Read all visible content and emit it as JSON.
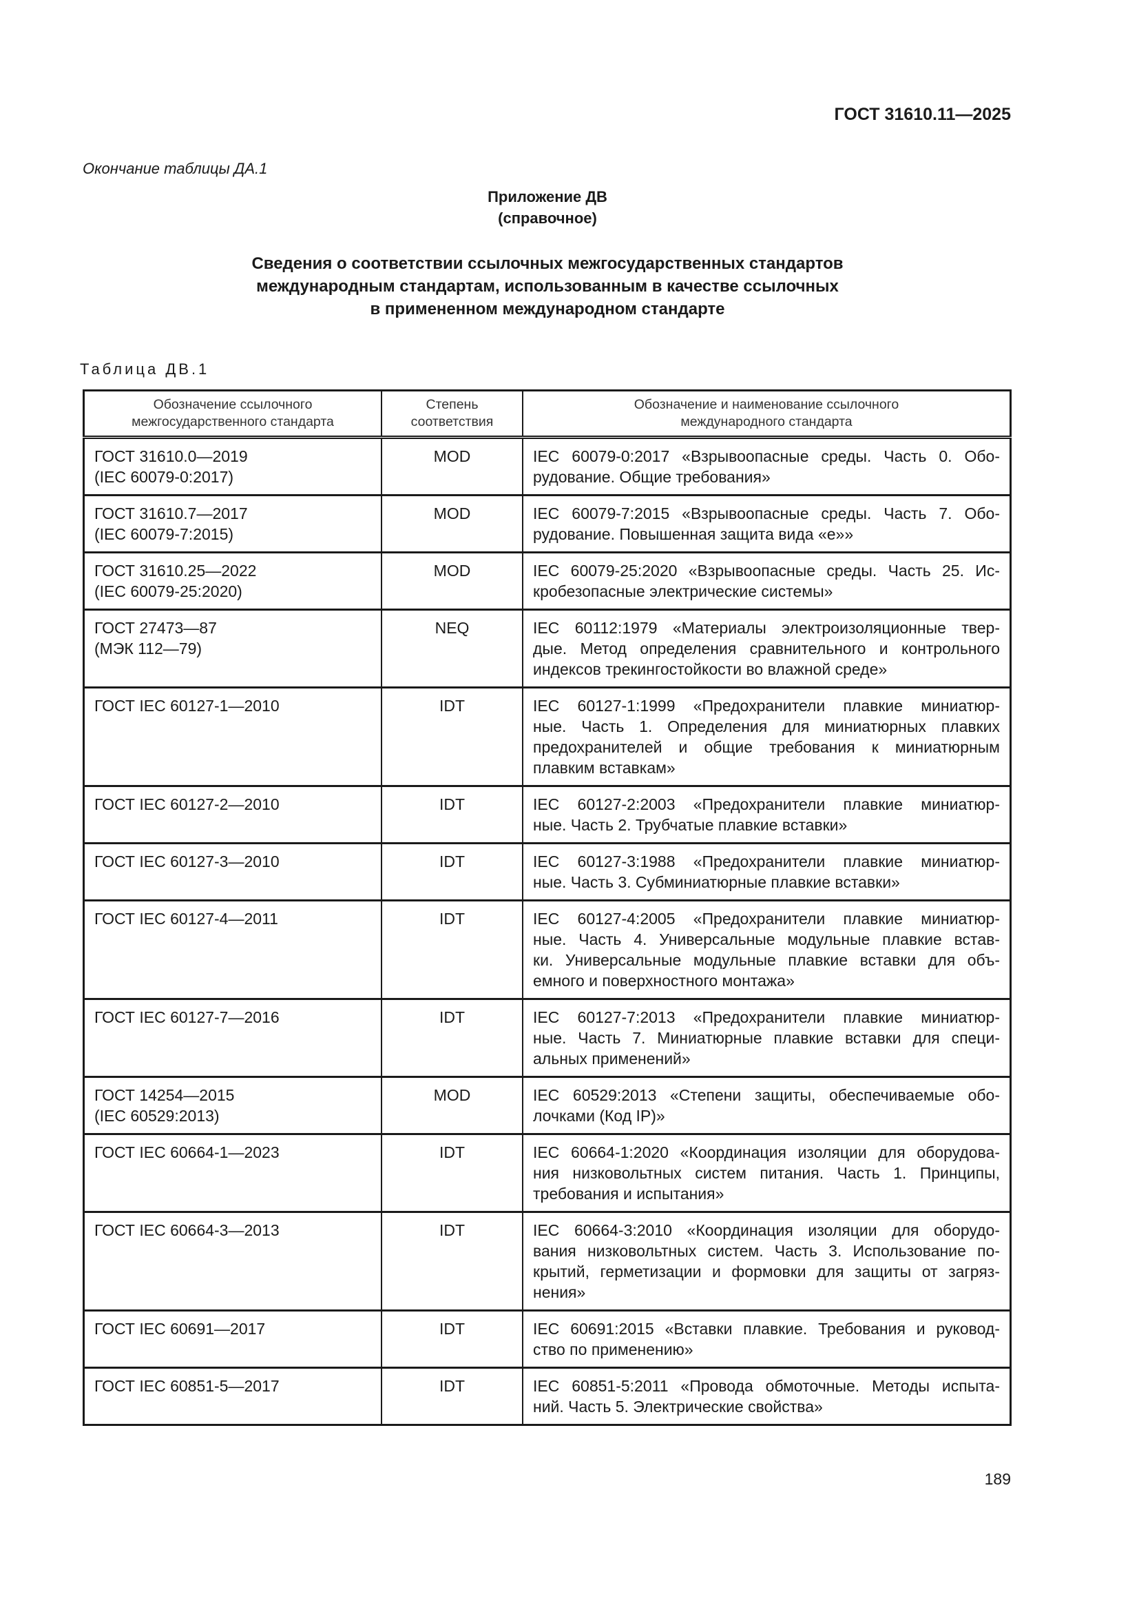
{
  "header": {
    "doc_code": "ГОСТ 31610.11—2025",
    "continuation": "Окончание таблицы ДА.1"
  },
  "annex": {
    "title": "Приложение ДВ",
    "kind": "(справочное)"
  },
  "title_lines": [
    "Сведения о соответствии ссылочных межгосударственных стандартов",
    "международным стандартам, использованным в качестве ссылочных",
    "в примененном международном стандарте"
  ],
  "table": {
    "label": "Таблица ДВ.1",
    "headers": [
      [
        "Обозначение ссылочного",
        "межгосударственного стандарта"
      ],
      [
        "Степень",
        "соответствия"
      ],
      [
        "Обозначение и наименование ссылочного",
        "международного стандарта"
      ]
    ],
    "rows": [
      {
        "std": [
          "ГОСТ 31610.0—2019",
          "(IEC 60079-0:2017)"
        ],
        "degree": "MOD",
        "intl": [
          "IEC 60079-0:2017 «Взрывоопасные среды. Часть 0. Обо-",
          "рудование. Общие требования»"
        ]
      },
      {
        "std": [
          "ГОСТ 31610.7—2017",
          "(IEC 60079-7:2015)"
        ],
        "degree": "MOD",
        "intl": [
          "IEC 60079-7:2015 «Взрывоопасные среды. Часть 7. Обо-",
          "рудование. Повышенная защита вида «е»»"
        ]
      },
      {
        "std": [
          "ГОСТ 31610.25—2022",
          "(IEC 60079-25:2020)"
        ],
        "degree": "MOD",
        "intl": [
          "IEC 60079-25:2020 «Взрывоопасные среды. Часть 25. Ис-",
          "кробезопасные электрические системы»"
        ]
      },
      {
        "std": [
          "ГОСТ 27473—87",
          "(МЭК 112—79)"
        ],
        "degree": "NEQ",
        "intl": [
          "IEC 60112:1979 «Материалы электроизоляционные твер-",
          "дые. Метод определения сравнительного и контрольного",
          "индексов трекингостойкости во влажной среде»"
        ]
      },
      {
        "std": [
          "ГОСТ IEC 60127-1—2010"
        ],
        "degree": "IDT",
        "intl": [
          "IEC 60127-1:1999 «Предохранители плавкие миниатюр-",
          "ные. Часть 1. Определения для миниатюрных плавких",
          "предохранителей и общие требования к миниатюрным",
          "плавким вставкам»"
        ]
      },
      {
        "std": [
          "ГОСТ IEC 60127-2—2010"
        ],
        "degree": "IDT",
        "intl": [
          "IEC 60127-2:2003 «Предохранители плавкие миниатюр-",
          "ные. Часть 2. Трубчатые плавкие вставки»"
        ]
      },
      {
        "std": [
          "ГОСТ IEC 60127-3—2010"
        ],
        "degree": "IDT",
        "intl": [
          "IEC 60127-3:1988 «Предохранители плавкие миниатюр-",
          "ные. Часть 3. Субминиатюрные плавкие вставки»"
        ]
      },
      {
        "std": [
          "ГОСТ IEC 60127-4—2011"
        ],
        "degree": "IDT",
        "intl": [
          "IEC 60127-4:2005 «Предохранители плавкие миниатюр-",
          "ные. Часть 4. Универсальные модульные плавкие встав-",
          "ки. Универсальные модульные плавкие вставки для объ-",
          "емного и поверхностного монтажа»"
        ]
      },
      {
        "std": [
          "ГОСТ IEC 60127-7—2016"
        ],
        "degree": "IDT",
        "intl": [
          "IEC 60127-7:2013 «Предохранители плавкие миниатюр-",
          "ные. Часть 7. Миниатюрные плавкие вставки для специ-",
          "альных применений»"
        ]
      },
      {
        "std": [
          "ГОСТ 14254—2015",
          "(IEC 60529:2013)"
        ],
        "degree": "MOD",
        "intl": [
          "IEC 60529:2013 «Степени защиты, обеспечиваемые обо-",
          "лочками (Код IP)»"
        ]
      },
      {
        "std": [
          "ГОСТ IEC 60664-1—2023"
        ],
        "degree": "IDT",
        "intl": [
          "IEC 60664-1:2020 «Координация изоляции для оборудова-",
          "ния низковольтных систем питания. Часть 1. Принципы,",
          "требования и испытания»"
        ]
      },
      {
        "std": [
          "ГОСТ IEC 60664-3—2013"
        ],
        "degree": "IDT",
        "intl": [
          "IEC 60664-3:2010 «Координация изоляции для оборудо-",
          "вания низковольтных систем. Часть 3. Использование по-",
          "крытий, герметизации и формовки для защиты от загряз-",
          "нения»"
        ]
      },
      {
        "std": [
          "ГОСТ IEC 60691—2017"
        ],
        "degree": "IDT",
        "intl": [
          "IEC 60691:2015 «Вставки плавкие. Требования и руковод-",
          "ство по применению»"
        ]
      },
      {
        "std": [
          "ГОСТ IEC 60851-5—2017"
        ],
        "degree": "IDT",
        "intl": [
          "IEC 60851-5:2011 «Провода обмоточные. Методы испыта-",
          "ний. Часть 5. Электрические свойства»"
        ]
      }
    ]
  },
  "footer": {
    "page_number": "189"
  }
}
